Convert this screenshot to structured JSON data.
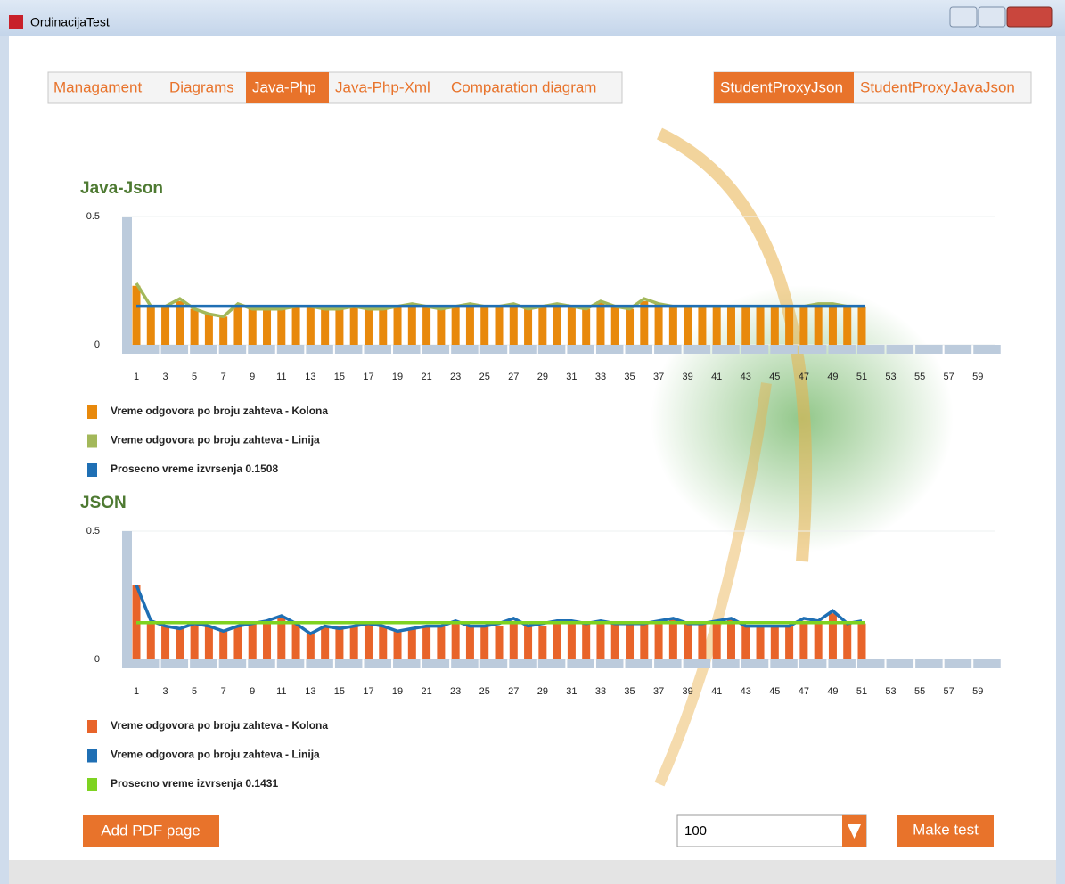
{
  "window": {
    "title": "OrdinacijaTest"
  },
  "tabs": {
    "left": [
      "Managament",
      "Diagrams",
      "Java-Php",
      "Java-Php-Xml",
      "Comparation diagram"
    ],
    "right": [
      "StudentProxyJson",
      "StudentProxyJavaJson"
    ]
  },
  "chart_data": [
    {
      "type": "bar",
      "title": "Java-Json",
      "categories": [
        1,
        null,
        3,
        null,
        5,
        null,
        7,
        null,
        9,
        null,
        11,
        null,
        13,
        null,
        15,
        null,
        17,
        null,
        19,
        null,
        21,
        null,
        23,
        null,
        25,
        null,
        27,
        null,
        29,
        null,
        31,
        null,
        33,
        null,
        35,
        null,
        37,
        null,
        39,
        null,
        41,
        null,
        43,
        null,
        45,
        null,
        47,
        null,
        49,
        null,
        51,
        null,
        53,
        null,
        55,
        null,
        57,
        null,
        59,
        null
      ],
      "ylim": [
        0,
        0.5
      ],
      "yticks": [
        0,
        0.5
      ],
      "grid": true,
      "series": [
        {
          "name": "Vreme odgovora po broju zahteva - Kolona",
          "color": "#e8890c",
          "type": "bar",
          "values": [
            0.23,
            0.15,
            0.15,
            0.17,
            0.14,
            0.12,
            0.11,
            0.15,
            0.14,
            0.14,
            0.14,
            0.15,
            0.15,
            0.14,
            0.14,
            0.15,
            0.14,
            0.14,
            0.15,
            0.16,
            0.15,
            0.14,
            0.15,
            0.15,
            0.15,
            0.15,
            0.15,
            0.14,
            0.15,
            0.16,
            0.15,
            0.14,
            0.17,
            0.15,
            0.14,
            0.17,
            0.16,
            0.15,
            0.15,
            0.15,
            0.15,
            0.15,
            0.15,
            0.15,
            0.15,
            0.15,
            0.15,
            0.16,
            0.16,
            0.15,
            0.15,
            null,
            null,
            null,
            null,
            null,
            null,
            null,
            null,
            null
          ]
        },
        {
          "name": "Vreme odgovora po broju zahteva - Linija",
          "color": "#a3b85a",
          "type": "line",
          "values": [
            0.24,
            0.15,
            0.15,
            0.18,
            0.14,
            0.12,
            0.11,
            0.16,
            0.14,
            0.14,
            0.14,
            0.15,
            0.15,
            0.14,
            0.14,
            0.15,
            0.14,
            0.14,
            0.15,
            0.16,
            0.15,
            0.14,
            0.15,
            0.16,
            0.15,
            0.15,
            0.16,
            0.14,
            0.15,
            0.16,
            0.15,
            0.14,
            0.17,
            0.15,
            0.14,
            0.18,
            0.16,
            0.15,
            0.15,
            0.15,
            0.15,
            0.15,
            0.15,
            0.15,
            0.15,
            0.15,
            0.15,
            0.16,
            0.16,
            0.15,
            0.15,
            null,
            null,
            null,
            null,
            null,
            null,
            null,
            null,
            null
          ]
        },
        {
          "name": "Prosecno vreme izvrsenja 0.1508",
          "color": "#1f6fb4",
          "type": "hline",
          "value": 0.1508
        }
      ]
    },
    {
      "type": "bar",
      "title": "JSON",
      "categories": [
        1,
        null,
        3,
        null,
        5,
        null,
        7,
        null,
        9,
        null,
        11,
        null,
        13,
        null,
        15,
        null,
        17,
        null,
        19,
        null,
        21,
        null,
        23,
        null,
        25,
        null,
        27,
        null,
        29,
        null,
        31,
        null,
        33,
        null,
        35,
        null,
        37,
        null,
        39,
        null,
        41,
        null,
        43,
        null,
        45,
        null,
        47,
        null,
        49,
        null,
        51,
        null,
        53,
        null,
        55,
        null,
        57,
        null,
        59,
        null
      ],
      "ylim": [
        0,
        0.5
      ],
      "yticks": [
        0,
        0.5
      ],
      "grid": true,
      "series": [
        {
          "name": "Vreme odgovora po broju zahteva - Kolona",
          "color": "#e8642a",
          "type": "bar",
          "values": [
            0.29,
            0.14,
            0.13,
            0.12,
            0.14,
            0.13,
            0.11,
            0.13,
            0.14,
            0.15,
            0.16,
            0.14,
            0.1,
            0.13,
            0.13,
            0.13,
            0.14,
            0.13,
            0.11,
            0.12,
            0.13,
            0.13,
            0.15,
            0.13,
            0.13,
            0.13,
            0.15,
            0.13,
            0.13,
            0.14,
            0.15,
            0.14,
            0.14,
            0.14,
            0.14,
            0.14,
            0.15,
            0.16,
            0.14,
            0.14,
            0.15,
            0.16,
            0.13,
            0.13,
            0.13,
            0.13,
            0.15,
            0.15,
            0.18,
            0.14,
            0.14,
            null,
            null,
            null,
            null,
            null,
            null,
            null,
            null,
            null
          ]
        },
        {
          "name": "Vreme odgovora po broju zahteva - Linija",
          "color": "#1f6fb4",
          "type": "line",
          "values": [
            0.29,
            0.15,
            0.13,
            0.12,
            0.14,
            0.13,
            0.11,
            0.13,
            0.14,
            0.15,
            0.17,
            0.14,
            0.1,
            0.13,
            0.12,
            0.13,
            0.14,
            0.13,
            0.11,
            0.12,
            0.13,
            0.13,
            0.15,
            0.13,
            0.13,
            0.14,
            0.16,
            0.13,
            0.14,
            0.15,
            0.15,
            0.14,
            0.15,
            0.14,
            0.14,
            0.14,
            0.15,
            0.16,
            0.14,
            0.14,
            0.15,
            0.16,
            0.13,
            0.13,
            0.13,
            0.13,
            0.16,
            0.15,
            0.19,
            0.14,
            0.15,
            null,
            null,
            null,
            null,
            null,
            null,
            null,
            null,
            null
          ]
        },
        {
          "name": "Prosecno vreme izvrsenja 0.1431",
          "color": "#7ed321",
          "type": "hline",
          "value": 0.1431
        }
      ]
    }
  ],
  "controls": {
    "add_pdf": "Add PDF page",
    "combo_value": "100",
    "make_test": "Make test"
  }
}
